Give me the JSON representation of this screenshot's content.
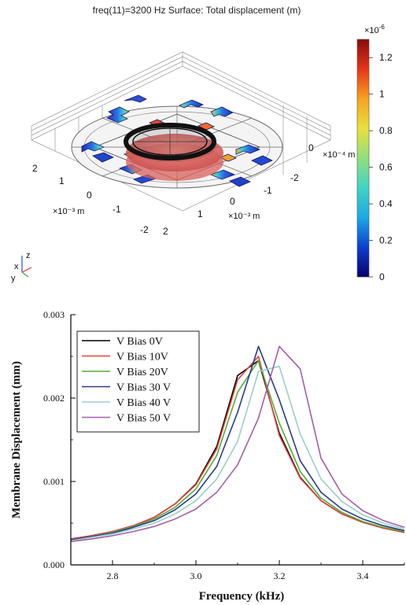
{
  "simulation": {
    "title": "freq(11)=3200 Hz   Surface: Total displacement (m)",
    "colorbar": {
      "exponent": "×10",
      "exponent_power": "-6",
      "ticks": [
        "0",
        "0.2",
        "0.4",
        "0.6",
        "0.8",
        "1",
        "1.2"
      ],
      "tick_values": [
        0,
        0.2,
        0.4,
        0.6,
        0.8,
        1.0,
        1.2
      ],
      "max": 1.3,
      "colors": [
        "#08006e",
        "#0b3fd4",
        "#1aa9e6",
        "#3dd6c6",
        "#8fe07a",
        "#e8e13a",
        "#f7a21d",
        "#e83418",
        "#8b0a0a"
      ]
    },
    "axis_labels": {
      "left_unit": "×10⁻³ m",
      "right_unit": "×10⁻³ m",
      "z_unit": "×10⁻⁴ m",
      "left_ticks": [
        "2",
        "1",
        "0",
        "-1",
        "-2"
      ],
      "right_ticks": [
        "2",
        "1",
        "0",
        "-1",
        "-2"
      ],
      "z_tick": "0"
    },
    "triad": {
      "x": "x",
      "y": "y",
      "z": "z"
    }
  },
  "chart_data": {
    "type": "line",
    "xlabel": "Frequency (kHz)",
    "ylabel": "Membrane Displacement (mm)",
    "xlim": [
      2.7,
      3.5
    ],
    "ylim": [
      0.0,
      0.003
    ],
    "xticks": [
      2.8,
      3.0,
      3.2,
      3.4
    ],
    "xtick_labels": [
      "2.8",
      "3.0",
      "3.2",
      "3.4"
    ],
    "yticks": [
      0.0,
      0.001,
      0.002,
      0.003
    ],
    "ytick_labels": [
      "0.000",
      "0.001",
      "0.002",
      "0.003"
    ],
    "grid": false,
    "legend_position": "top-left",
    "series": [
      {
        "name": "V Bias 0V",
        "color": "#000000",
        "x": [
          2.7,
          2.75,
          2.8,
          2.85,
          2.9,
          2.95,
          3.0,
          3.05,
          3.1,
          3.15,
          3.2,
          3.25,
          3.3,
          3.35,
          3.4,
          3.45,
          3.5
        ],
        "y": [
          0.00031,
          0.00035,
          0.0004,
          0.00047,
          0.00057,
          0.00073,
          0.00097,
          0.00142,
          0.00227,
          0.00245,
          0.00158,
          0.00105,
          0.00077,
          0.00061,
          0.00051,
          0.00044,
          0.00039
        ]
      },
      {
        "name": "V Bias 10V",
        "color": "#e8433b",
        "x": [
          2.7,
          2.75,
          2.8,
          2.85,
          2.9,
          2.95,
          3.0,
          3.05,
          3.1,
          3.15,
          3.2,
          3.25,
          3.3,
          3.35,
          3.4,
          3.45,
          3.5
        ],
        "y": [
          0.00031,
          0.00035,
          0.0004,
          0.00047,
          0.00057,
          0.00073,
          0.00096,
          0.00139,
          0.00222,
          0.0025,
          0.00155,
          0.00104,
          0.00077,
          0.00061,
          0.00051,
          0.00044,
          0.00039
        ]
      },
      {
        "name": "V Bias 20V",
        "color": "#5aaa3a",
        "x": [
          2.7,
          2.75,
          2.8,
          2.85,
          2.9,
          2.95,
          3.0,
          3.05,
          3.1,
          3.15,
          3.2,
          3.25,
          3.3,
          3.35,
          3.4,
          3.45,
          3.5
        ],
        "y": [
          0.0003,
          0.00034,
          0.00039,
          0.00046,
          0.00055,
          0.00069,
          0.00091,
          0.00131,
          0.00207,
          0.00245,
          0.0017,
          0.00112,
          0.0008,
          0.00063,
          0.00052,
          0.00045,
          0.0004
        ]
      },
      {
        "name": "V Bias 30 V",
        "color": "#263d8c",
        "x": [
          2.7,
          2.75,
          2.8,
          2.85,
          2.9,
          2.95,
          3.0,
          3.05,
          3.1,
          3.15,
          3.2,
          3.25,
          3.3,
          3.35,
          3.4,
          3.45,
          3.5
        ],
        "y": [
          0.0003,
          0.00034,
          0.00038,
          0.00045,
          0.00053,
          0.00066,
          0.00085,
          0.00118,
          0.00183,
          0.00262,
          0.00198,
          0.00125,
          0.00087,
          0.00067,
          0.00055,
          0.00047,
          0.00041
        ]
      },
      {
        "name": "V Bias 40 V",
        "color": "#99cfc7",
        "x": [
          2.7,
          2.75,
          2.8,
          2.85,
          2.9,
          2.95,
          3.0,
          3.05,
          3.1,
          3.15,
          3.2,
          3.25,
          3.3,
          3.35,
          3.4,
          3.45,
          3.5
        ],
        "y": [
          0.00029,
          0.00033,
          0.00037,
          0.00043,
          0.0005,
          0.00061,
          0.00077,
          0.00103,
          0.00148,
          0.00232,
          0.00238,
          0.00157,
          0.00103,
          0.00076,
          0.0006,
          0.0005,
          0.00043
        ]
      },
      {
        "name": "V Bias 50 V",
        "color": "#a35fa8",
        "x": [
          2.7,
          2.75,
          2.8,
          2.85,
          2.9,
          2.95,
          3.0,
          3.05,
          3.1,
          3.15,
          3.2,
          3.25,
          3.3,
          3.35,
          3.4,
          3.45,
          3.5
        ],
        "y": [
          0.00028,
          0.00031,
          0.00035,
          0.0004,
          0.00046,
          0.00055,
          0.00067,
          0.00087,
          0.0012,
          0.00176,
          0.00262,
          0.00235,
          0.00128,
          0.00085,
          0.00065,
          0.00053,
          0.00045
        ]
      }
    ]
  }
}
